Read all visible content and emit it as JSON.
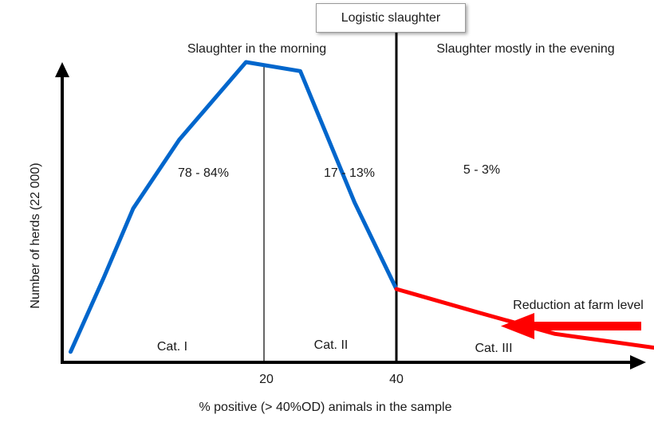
{
  "chart_data": {
    "type": "line",
    "xlabel": "% positive (> 40%OD) animals in the sample",
    "ylabel": "Number of herds (22 000)",
    "xlim": [
      0,
      80
    ],
    "ylim": [
      0,
      100
    ],
    "x_ticks": [
      20,
      40
    ],
    "grid": false,
    "series": [
      {
        "color": "#0066cc",
        "x": [
          1,
          5,
          8.5,
          14,
          22,
          28.5,
          35,
          40
        ],
        "y": [
          3,
          28,
          51,
          74,
          100,
          97,
          53,
          24
        ]
      },
      {
        "color": "#ff0000",
        "x": [
          40,
          50,
          59,
          82
        ],
        "y": [
          24,
          16,
          9,
          0
        ]
      }
    ],
    "dividers": [
      {
        "x": 31,
        "label": "Slaughter in the morning"
      },
      {
        "x": 51,
        "label": "Slaughter mostly in the evening"
      }
    ],
    "regions": [
      {
        "percent": "78 - 84%",
        "category": "Cat. I"
      },
      {
        "percent": "17 - 13%",
        "category": "Cat. II"
      },
      {
        "percent": "5 - 3%",
        "category": "Cat. III"
      }
    ],
    "annotations": {
      "logistic_box": "Logistic slaughter",
      "reduction": "Reduction at farm level",
      "arrow_color": "#ff0000"
    }
  }
}
